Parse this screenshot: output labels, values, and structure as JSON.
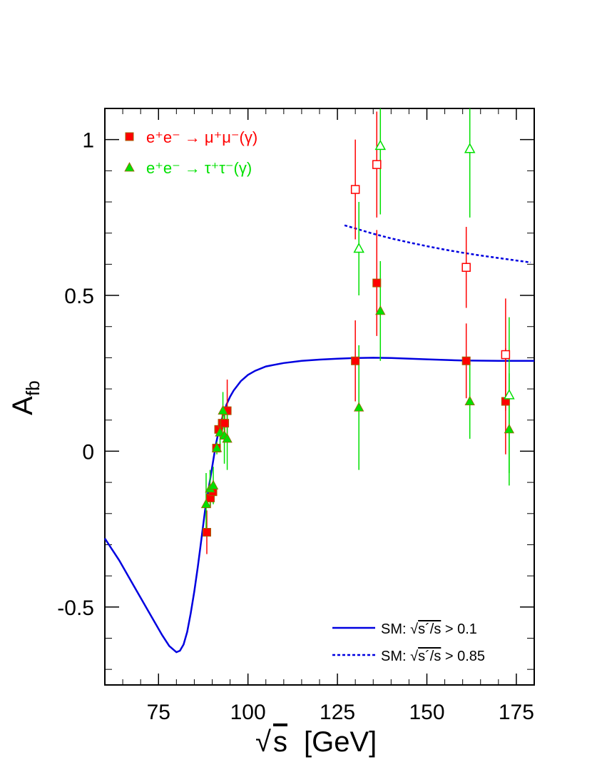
{
  "chart_data": {
    "type": "scatter",
    "title": "",
    "xlabel_radical": "√",
    "xlabel_var": "s",
    "xlabel_unit": "[GeV]",
    "ylabel_main": "A",
    "ylabel_sub": "fb",
    "xlim": [
      60,
      180
    ],
    "ylim": [
      -0.75,
      1.1
    ],
    "x_ticks": [
      75,
      100,
      125,
      150,
      175
    ],
    "x_tick_labels": [
      "75",
      "100",
      "125",
      "150",
      "175"
    ],
    "y_ticks": [
      -0.5,
      0,
      0.5,
      1
    ],
    "y_tick_labels": [
      "-0.5",
      "0",
      "0.5",
      "1"
    ],
    "legend_position": "top-left",
    "colors": {
      "mu": "#ff0000",
      "tau": "#00e000",
      "sm": "#0000e0",
      "markeredge": "#a06000"
    },
    "legend": [
      {
        "id": "mu",
        "text": "e⁺e⁻ → μ⁺μ⁻(γ)"
      },
      {
        "id": "tau",
        "text": "e⁺e⁻ → τ⁺τ⁻(γ)"
      }
    ],
    "sm_legend": [
      {
        "id": "sm-inclusive",
        "style": "solid",
        "prefix": "SM: ",
        "sqrt": "√",
        "expr": "s´/s",
        "cut": " > 0.1"
      },
      {
        "id": "sm-exclusive",
        "style": "dashed",
        "prefix": "SM: ",
        "sqrt": "√",
        "expr": "s´/s",
        "cut": " > 0.85"
      }
    ],
    "series": [
      {
        "name": "e⁺e⁻ → μ⁺μ⁻(γ)",
        "marker": "square-filled",
        "points": [
          {
            "x": 88.5,
            "y": -0.26,
            "err": 0.07
          },
          {
            "x": 89.5,
            "y": -0.15,
            "err": 0.03
          },
          {
            "x": 90.2,
            "y": -0.13,
            "err": 0.03
          },
          {
            "x": 91.2,
            "y": 0.01,
            "err": 0.01
          },
          {
            "x": 91.8,
            "y": 0.07,
            "err": 0.02
          },
          {
            "x": 92.8,
            "y": 0.09,
            "err": 0.04
          },
          {
            "x": 93.5,
            "y": 0.09,
            "err": 0.05
          },
          {
            "x": 94.2,
            "y": 0.13,
            "err": 0.1
          },
          {
            "x": 130.0,
            "y": 0.29,
            "err": 0.13
          },
          {
            "x": 136.0,
            "y": 0.54,
            "err": 0.17
          },
          {
            "x": 161.0,
            "y": 0.29,
            "err": 0.12
          },
          {
            "x": 172.0,
            "y": 0.16,
            "err": 0.17
          }
        ]
      },
      {
        "name": "e⁺e⁻ → τ⁺τ⁻(γ)",
        "marker": "triangle-filled",
        "points": [
          {
            "x": 88.3,
            "y": -0.17,
            "err": 0.1
          },
          {
            "x": 89.4,
            "y": -0.12,
            "err": 0.06
          },
          {
            "x": 90.3,
            "y": -0.11,
            "err": 0.06
          },
          {
            "x": 91.3,
            "y": 0.01,
            "err": 0.02
          },
          {
            "x": 92.2,
            "y": 0.06,
            "err": 0.04
          },
          {
            "x": 93.0,
            "y": 0.13,
            "err": 0.06
          },
          {
            "x": 93.4,
            "y": 0.05,
            "err": 0.09
          },
          {
            "x": 94.2,
            "y": 0.04,
            "err": 0.1
          },
          {
            "x": 131.0,
            "y": 0.14,
            "err": 0.2
          },
          {
            "x": 137.0,
            "y": 0.45,
            "err": 0.16
          },
          {
            "x": 162.0,
            "y": 0.16,
            "err": 0.12
          },
          {
            "x": 173.0,
            "y": 0.07,
            "err": 0.18
          }
        ]
      },
      {
        "name": "",
        "marker": "square-open",
        "color_key": "mu",
        "points": [
          {
            "x": 130.0,
            "y": 0.84,
            "err": 0.16
          },
          {
            "x": 136.0,
            "y": 0.92,
            "err": 0.17
          },
          {
            "x": 161.0,
            "y": 0.59,
            "err": 0.13
          },
          {
            "x": 172.0,
            "y": 0.31,
            "err": 0.18
          }
        ]
      },
      {
        "name": "",
        "marker": "triangle-open",
        "color_key": "tau",
        "points": [
          {
            "x": 131.0,
            "y": 0.65,
            "err": 0.15
          },
          {
            "x": 137.0,
            "y": 0.98,
            "err": 0.22
          },
          {
            "x": 162.0,
            "y": 0.97,
            "err": 0.22
          },
          {
            "x": 173.0,
            "y": 0.18,
            "err": 0.25
          }
        ]
      }
    ],
    "sm_curves": {
      "inclusive": {
        "style": "solid",
        "x": [
          60,
          64,
          68,
          72,
          76,
          78,
          80,
          81,
          82,
          83,
          84,
          85,
          86,
          87,
          88,
          89,
          90,
          91,
          92,
          93,
          94,
          95,
          96,
          98,
          100,
          102,
          105,
          110,
          115,
          120,
          125,
          130,
          135,
          140,
          150,
          160,
          170,
          180
        ],
        "y": [
          -0.28,
          -0.35,
          -0.43,
          -0.51,
          -0.59,
          -0.625,
          -0.645,
          -0.64,
          -0.62,
          -0.58,
          -0.52,
          -0.45,
          -0.37,
          -0.28,
          -0.19,
          -0.12,
          -0.05,
          0.02,
          0.075,
          0.115,
          0.15,
          0.175,
          0.195,
          0.225,
          0.245,
          0.258,
          0.272,
          0.283,
          0.29,
          0.294,
          0.297,
          0.299,
          0.3,
          0.299,
          0.295,
          0.291,
          0.29,
          0.29
        ]
      },
      "exclusive": {
        "style": "dashed",
        "x": [
          127,
          130,
          135,
          140,
          145,
          150,
          155,
          160,
          165,
          170,
          175,
          179
        ],
        "y": [
          0.725,
          0.715,
          0.698,
          0.683,
          0.67,
          0.658,
          0.647,
          0.637,
          0.628,
          0.62,
          0.612,
          0.606
        ]
      }
    }
  }
}
